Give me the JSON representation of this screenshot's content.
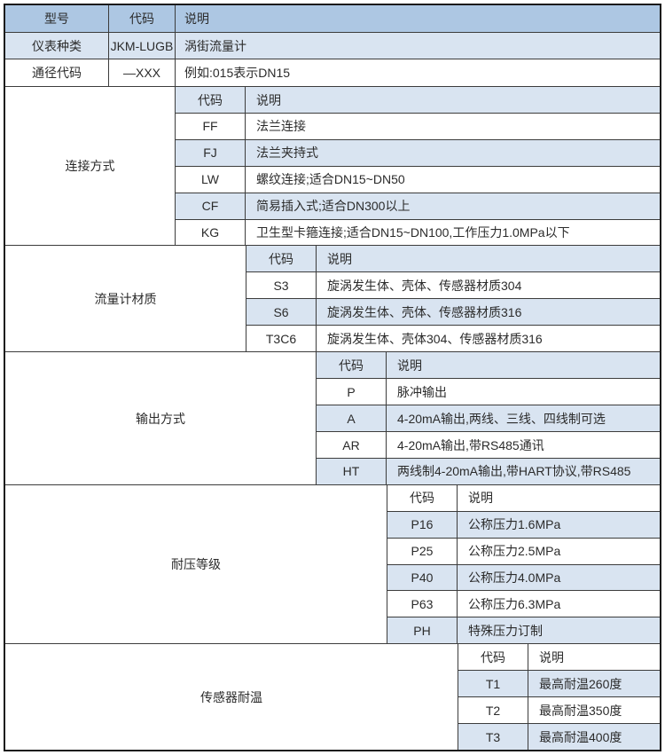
{
  "colors": {
    "header_bg": "#adc7e3",
    "row_blue": "#d9e4f1",
    "row_white": "#ffffff",
    "border_inner": "#3c3c3c",
    "border_outer": "#1b1b1b",
    "text": "#2b2b2b"
  },
  "header": {
    "model": "型号",
    "code": "代码",
    "desc": "说明"
  },
  "rows": {
    "instrument": {
      "label": "仪表种类",
      "code": "JKM-LUGB",
      "desc": "涡街流量计"
    },
    "diameter": {
      "label": "通径代码",
      "code": "—XXX",
      "desc": "例如:015表示DN15"
    }
  },
  "sections": [
    {
      "label": "连接方式",
      "hdr": {
        "code": "代码",
        "desc": "说明"
      },
      "rows": [
        {
          "code": "FF",
          "desc": "法兰连接"
        },
        {
          "code": "FJ",
          "desc": "法兰夹持式"
        },
        {
          "code": "LW",
          "desc": "螺纹连接;适合DN15~DN50"
        },
        {
          "code": "CF",
          "desc": "简易插入式;适合DN300以上"
        },
        {
          "code": "KG",
          "desc": "卫生型卡箍连接;适合DN15~DN100,工作压力1.0MPa以下"
        }
      ]
    },
    {
      "label": "流量计材质",
      "hdr": {
        "code": "代码",
        "desc": "说明"
      },
      "rows": [
        {
          "code": "S3",
          "desc": "旋涡发生体、壳体、传感器材质304"
        },
        {
          "code": "S6",
          "desc": "旋涡发生体、壳体、传感器材质316"
        },
        {
          "code": "T3C6",
          "desc": "旋涡发生体、壳体304、传感器材质316"
        }
      ]
    },
    {
      "label": "输出方式",
      "hdr": {
        "code": "代码",
        "desc": "说明"
      },
      "rows": [
        {
          "code": "P",
          "desc": "脉冲输出"
        },
        {
          "code": "A",
          "desc": "4-20mA输出,两线、三线、四线制可选"
        },
        {
          "code": "AR",
          "desc": "4-20mA输出,带RS485通讯"
        },
        {
          "code": "HT",
          "desc": "两线制4-20mA输出,带HART协议,带RS485"
        }
      ]
    },
    {
      "label": "耐压等级",
      "hdr": {
        "code": "代码",
        "desc": "说明"
      },
      "rows": [
        {
          "code": "P16",
          "desc": "公称压力1.6MPa"
        },
        {
          "code": "P25",
          "desc": "公称压力2.5MPa"
        },
        {
          "code": "P40",
          "desc": "公称压力4.0MPa"
        },
        {
          "code": "P63",
          "desc": "公称压力6.3MPa"
        },
        {
          "code": "PH",
          "desc": "特殊压力订制"
        }
      ]
    },
    {
      "label": "传感器耐温",
      "hdr": {
        "code": "代码",
        "desc": "说明"
      },
      "rows": [
        {
          "code": "T1",
          "desc": "最高耐温260度"
        },
        {
          "code": "T2",
          "desc": "最高耐温350度"
        },
        {
          "code": "T3",
          "desc": "最高耐温400度"
        }
      ]
    }
  ]
}
